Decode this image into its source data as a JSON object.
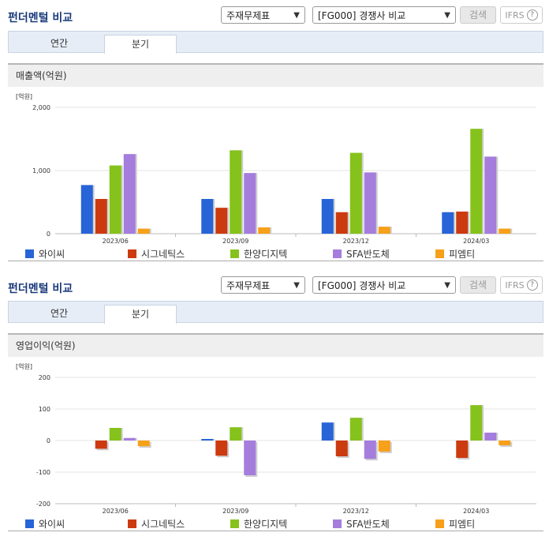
{
  "colors": {
    "series": [
      "#2764d8",
      "#cc3a10",
      "#86c21c",
      "#a57ddc",
      "#f7a01a"
    ]
  },
  "panels": [
    {
      "title": "펀더멘털 비교",
      "select_item": "주재무제표",
      "select_group": "[FG000] 경쟁사 비교",
      "search_label": "검색",
      "ifrs_label": "IFRS",
      "help_glyph": "?",
      "tabs": [
        {
          "label": "연간"
        },
        {
          "label": "분기"
        }
      ],
      "section_label": "매출액(억원)"
    },
    {
      "title": "펀더멘털 비교",
      "select_item": "주재무제표",
      "select_group": "[FG000] 경쟁사 비교",
      "search_label": "검색",
      "ifrs_label": "IFRS",
      "help_glyph": "?",
      "tabs": [
        {
          "label": "연간"
        },
        {
          "label": "분기"
        }
      ],
      "section_label": "영업이익(억원)"
    }
  ],
  "chart_data": [
    {
      "type": "bar",
      "title": "매출액(억원)",
      "unit_label": "[억원]",
      "categories": [
        "2023/06",
        "2023/09",
        "2023/12",
        "2024/03"
      ],
      "ylim": [
        0,
        2000
      ],
      "yticks": [
        0,
        1000,
        2000
      ],
      "ytick_labels": [
        "0",
        "1,000",
        "2,000"
      ],
      "series": [
        {
          "name": "와이씨",
          "values": [
            770,
            550,
            550,
            340
          ]
        },
        {
          "name": "시그네틱스",
          "values": [
            550,
            410,
            340,
            350
          ]
        },
        {
          "name": "한양디지텍",
          "values": [
            1080,
            1320,
            1280,
            1660
          ]
        },
        {
          "name": "SFA반도체",
          "values": [
            1260,
            960,
            970,
            1220
          ]
        },
        {
          "name": "피엠티",
          "values": [
            80,
            100,
            110,
            80
          ]
        }
      ]
    },
    {
      "type": "bar",
      "title": "영업이익(억원)",
      "unit_label": "[억원]",
      "categories": [
        "2023/06",
        "2023/09",
        "2023/12",
        "2024/03"
      ],
      "ylim": [
        -200,
        200
      ],
      "yticks": [
        -200,
        -100,
        0,
        100,
        200
      ],
      "ytick_labels": [
        "-200",
        "-100",
        "0",
        "100",
        "200"
      ],
      "series": [
        {
          "name": "와이씨",
          "values": [
            0,
            5,
            57,
            0
          ]
        },
        {
          "name": "시그네틱스",
          "values": [
            -26,
            -48,
            -50,
            -55
          ]
        },
        {
          "name": "한양디지텍",
          "values": [
            40,
            42,
            72,
            112
          ]
        },
        {
          "name": "SFA반도체",
          "values": [
            8,
            -110,
            -58,
            25
          ]
        },
        {
          "name": "피엠티",
          "values": [
            -18,
            0,
            -35,
            -15
          ]
        }
      ]
    }
  ]
}
